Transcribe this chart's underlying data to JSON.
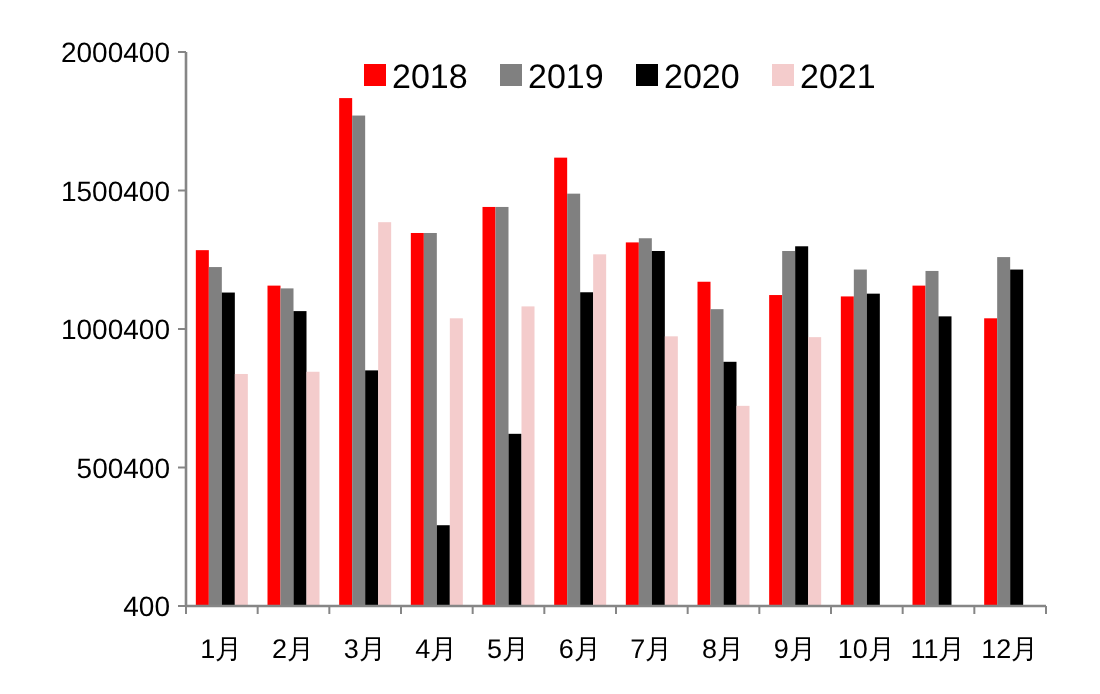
{
  "chart_data": {
    "type": "bar",
    "categories": [
      "1月",
      "2月",
      "3月",
      "4月",
      "5月",
      "6月",
      "7月",
      "8月",
      "9月",
      "10月",
      "11月",
      "12月"
    ],
    "series": [
      {
        "name": "2018",
        "color": "#ff0000",
        "values": [
          1285000,
          1157000,
          1834000,
          1347000,
          1441000,
          1619000,
          1313000,
          1171000,
          1123000,
          1118000,
          1157000,
          1039000
        ]
      },
      {
        "name": "2019",
        "color": "#808080",
        "values": [
          1224000,
          1147000,
          1771000,
          1347000,
          1441000,
          1489000,
          1328000,
          1072000,
          1282000,
          1215000,
          1210000,
          1260000
        ]
      },
      {
        "name": "2020",
        "color": "#000000",
        "values": [
          1132000,
          1065000,
          851000,
          292000,
          622000,
          1133000,
          1282000,
          882000,
          1299000,
          1128000,
          1046000,
          1215000
        ]
      },
      {
        "name": "2021",
        "color": "#f4cccc",
        "values": [
          838000,
          846000,
          1386000,
          1039000,
          1082000,
          1270000,
          974000,
          723000,
          971000,
          null,
          null,
          null
        ]
      }
    ],
    "ylim": [
      400,
      2000400
    ],
    "yticks": [
      400,
      500400,
      1000400,
      1500400,
      2000400
    ],
    "grid": false,
    "legend": "top"
  }
}
